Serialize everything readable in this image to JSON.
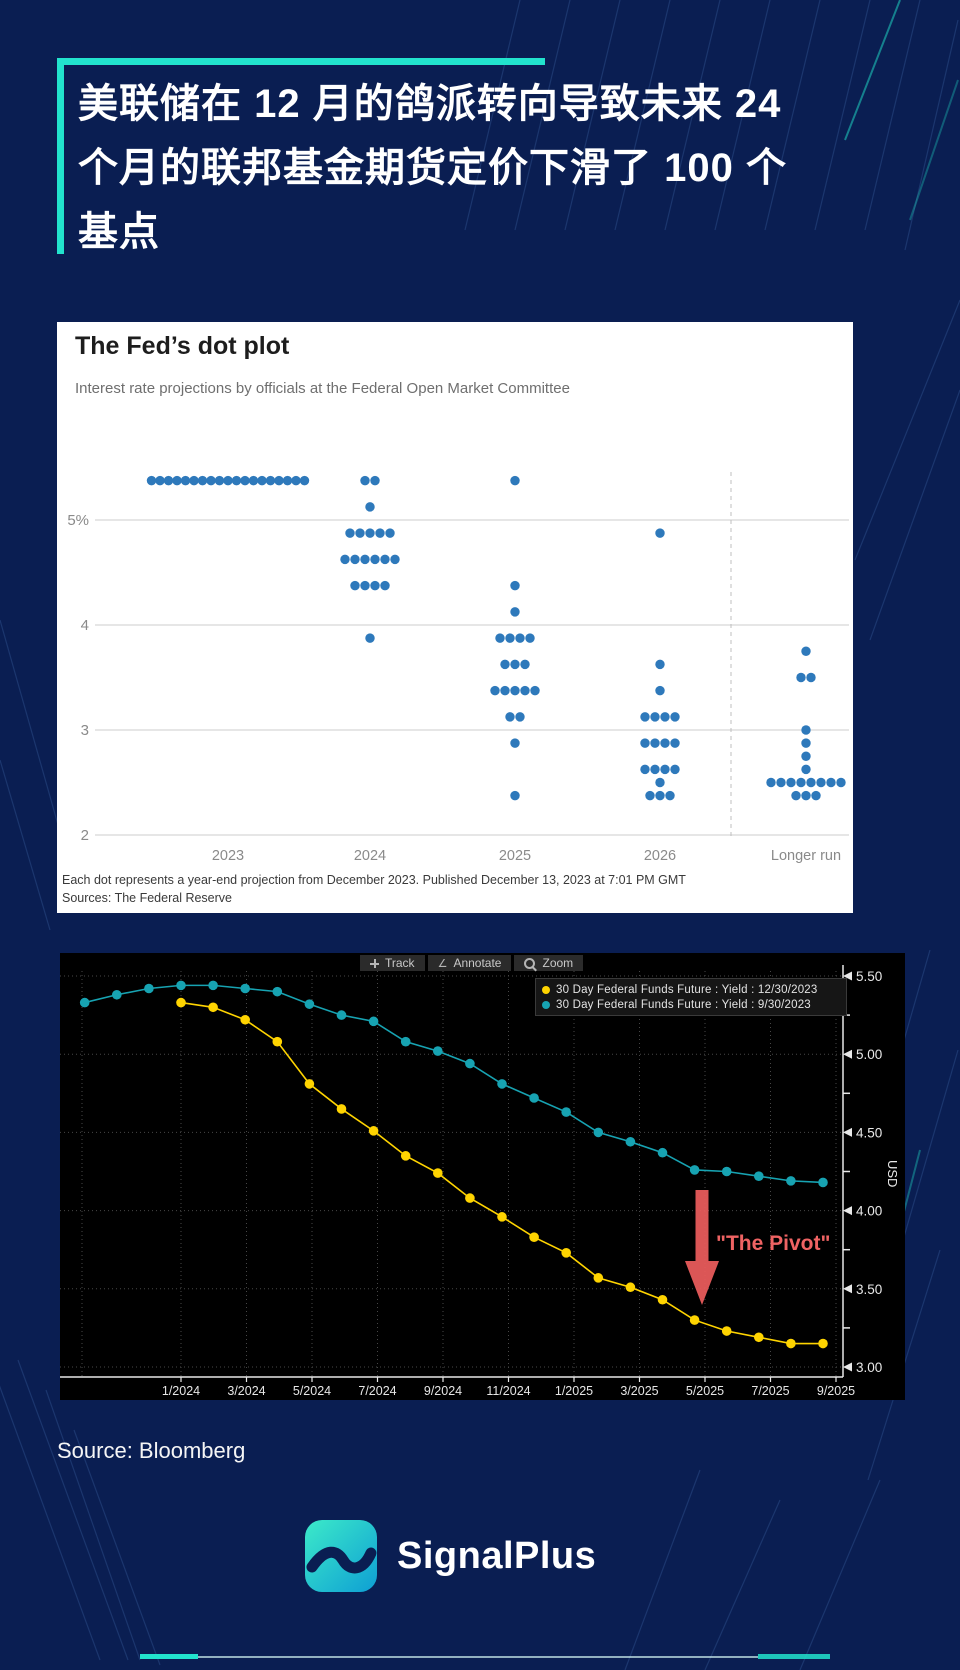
{
  "header": {
    "lines": [
      "美联储在 12 月的鸽派转向导致未来 24",
      "个月的联邦基金期货定价下滑了 100 个",
      "基点"
    ]
  },
  "dot_plot": {
    "title": "The Fed’s dot plot",
    "subtitle": "Interest rate projections by officials at the Federal Open Market Committee",
    "footnote": "Each dot represents a year-end projection from December 2023. Published December 13, 2023 at 7:01 PM GMT",
    "sources": "Sources: The Federal Reserve"
  },
  "terminal": {
    "toolbar": [
      "Track",
      "Annotate",
      "Zoom"
    ],
    "annotation": "\"The Pivot\""
  },
  "footer": {
    "source": "Source: Bloomberg",
    "brand": "SignalPlus"
  },
  "colors": {
    "accent_teal": "#22e3cd",
    "dot_blue": "#2e79bb",
    "series_yellow": "#ffd400",
    "series_teal": "#17a3b2",
    "pivot_red": "#ee5d5d"
  },
  "chart_data": [
    {
      "type": "scatter",
      "title": "The Fed’s dot plot",
      "categories": [
        "2023",
        "2024",
        "2025",
        "2026",
        "Longer run"
      ],
      "yticks": [
        5,
        4,
        3,
        2
      ],
      "ytick_labels": [
        "5%",
        "4",
        "3",
        "2"
      ],
      "ylim": [
        2,
        5.75
      ],
      "dot_color": "#2e79bb",
      "columns": [
        {
          "label": "2023",
          "dots": [
            {
              "value": 5.375,
              "count": 19
            }
          ]
        },
        {
          "label": "2024",
          "dots": [
            {
              "value": 5.375,
              "count": 2
            },
            {
              "value": 5.125,
              "count": 1
            },
            {
              "value": 4.875,
              "count": 5
            },
            {
              "value": 4.625,
              "count": 6
            },
            {
              "value": 4.375,
              "count": 4
            },
            {
              "value": 3.875,
              "count": 1
            }
          ]
        },
        {
          "label": "2025",
          "dots": [
            {
              "value": 5.375,
              "count": 1
            },
            {
              "value": 4.375,
              "count": 1
            },
            {
              "value": 4.125,
              "count": 1
            },
            {
              "value": 3.875,
              "count": 4
            },
            {
              "value": 3.625,
              "count": 3
            },
            {
              "value": 3.375,
              "count": 5
            },
            {
              "value": 3.125,
              "count": 2
            },
            {
              "value": 2.875,
              "count": 1
            },
            {
              "value": 2.375,
              "count": 1
            }
          ]
        },
        {
          "label": "2026",
          "dots": [
            {
              "value": 4.875,
              "count": 1
            },
            {
              "value": 3.625,
              "count": 1
            },
            {
              "value": 3.375,
              "count": 1
            },
            {
              "value": 3.125,
              "count": 4
            },
            {
              "value": 2.875,
              "count": 4
            },
            {
              "value": 2.625,
              "count": 4
            },
            {
              "value": 2.5,
              "count": 1
            },
            {
              "value": 2.375,
              "count": 3
            }
          ]
        },
        {
          "label": "Longer run",
          "dots": [
            {
              "value": 3.75,
              "count": 1
            },
            {
              "value": 3.5,
              "count": 2
            },
            {
              "value": 3.0,
              "count": 1
            },
            {
              "value": 2.875,
              "count": 1
            },
            {
              "value": 2.75,
              "count": 1
            },
            {
              "value": 2.625,
              "count": 1
            },
            {
              "value": 2.5,
              "count": 8
            },
            {
              "value": 2.375,
              "count": 3
            }
          ]
        }
      ]
    },
    {
      "type": "line",
      "x_tick_labels": [
        "1/2024",
        "3/2024",
        "5/2024",
        "7/2024",
        "9/2024",
        "11/2024",
        "1/2025",
        "3/2025",
        "5/2025",
        "7/2025",
        "9/2025"
      ],
      "yticks": [
        5.5,
        5.0,
        4.5,
        4.0,
        3.5,
        3.0
      ],
      "ytick_labels": [
        "5.50",
        "5.00",
        "4.50",
        "4.00",
        "3.50",
        "3.00"
      ],
      "ylabel": "USD",
      "legend_position": "top-right",
      "grid": "dotted",
      "annotation": "\"The Pivot\"",
      "series": [
        {
          "name": "30 Day Federal Funds Future : Yield : 12/30/2023",
          "color": "#ffd400",
          "first_month": "1/2024",
          "month_offset": 0,
          "values": [
            5.33,
            5.3,
            5.22,
            5.08,
            4.81,
            4.65,
            4.51,
            4.35,
            4.24,
            4.08,
            3.96,
            3.83,
            3.73,
            3.57,
            3.51,
            3.43,
            3.3,
            3.23,
            3.19,
            3.15,
            3.15
          ]
        },
        {
          "name": "30 Day Federal Funds Future : Yield : 9/30/2023",
          "color": "#17a3b2",
          "first_month": "10/2023",
          "month_offset": -3,
          "values": [
            5.33,
            5.38,
            5.42,
            5.44,
            5.44,
            5.42,
            5.4,
            5.32,
            5.25,
            5.21,
            5.08,
            5.02,
            4.94,
            4.81,
            4.72,
            4.63,
            4.5,
            4.44,
            4.37,
            4.26,
            4.25,
            4.22,
            4.19,
            4.18
          ]
        }
      ]
    }
  ]
}
